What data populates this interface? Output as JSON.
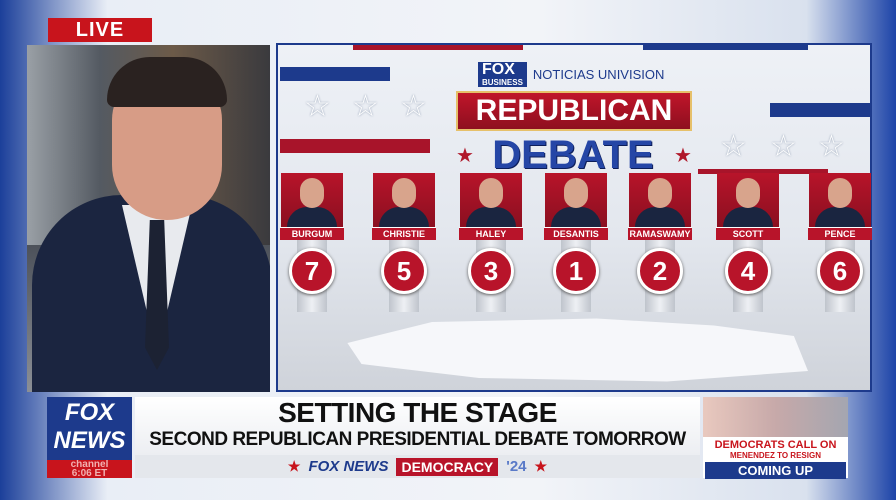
{
  "live_badge": "LIVE",
  "stage": {
    "network_logo": "FOX BUSINESS",
    "partner_logo": "NOTICIAS UNIVISION",
    "title_line1": "REPUBLICAN",
    "title_line2": "DEBATE",
    "candidates": [
      {
        "name": "BURGUM",
        "position": "7"
      },
      {
        "name": "CHRISTIE",
        "position": "5"
      },
      {
        "name": "HALEY",
        "position": "3"
      },
      {
        "name": "DESANTIS",
        "position": "1"
      },
      {
        "name": "RAMASWAMY",
        "position": "2"
      },
      {
        "name": "SCOTT",
        "position": "4"
      },
      {
        "name": "PENCE",
        "position": "6"
      }
    ]
  },
  "lower_third": {
    "logo_line1": "FOX",
    "logo_line2": "NEWS",
    "logo_sub": "channel",
    "clock": "6:06 ET",
    "headline": "SETTING THE STAGE",
    "subheadline": "SECOND REPUBLICAN PRESIDENTIAL DEBATE TOMORROW",
    "strip_brand": "FOX NEWS",
    "strip_tag": "DEMOCRACY",
    "strip_year": "'24"
  },
  "promo": {
    "line1": "DEMOCRATS CALL ON",
    "line2": "MENENDEZ TO RESIGN",
    "coming_up": "COMING UP"
  },
  "colors": {
    "red": "#b8142a",
    "blue": "#1d3a8c"
  }
}
